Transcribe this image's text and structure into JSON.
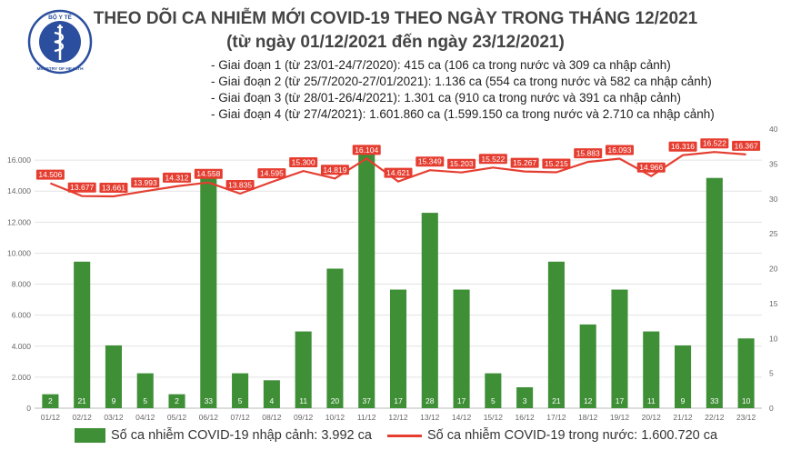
{
  "logo": {
    "top_text": "BỘ Y TẾ",
    "bottom_text": "MINISTRY OF HEALTH",
    "icon": "caduceus-emblem"
  },
  "header": {
    "title": "THEO DÕI CA NHIỄM MỚI COVID-19 THEO NGÀY TRONG THÁNG 12/2021",
    "subtitle": "(từ ngày 01/12/2021 đến ngày 23/12/2021)"
  },
  "phases": [
    "- Giai đoạn 1 (từ 23/01-24/7/2020): 415 ca (106 ca trong nước và 309 ca nhập cảnh)",
    "- Giai đoạn 2 (từ 25/7/2020-27/01/2021): 1.136 ca (554 ca trong nước và 582 ca nhập cảnh)",
    "- Giai đoạn 3 (từ 28/01-26/4/2021): 1.301 ca (910 ca trong nước và 391 ca nhập cảnh)",
    "- Giai đoạn 4 (từ 27/4/2021): 1.601.860 ca (1.599.150 ca trong nước và 2.710 ca nhập cảnh)"
  ],
  "colors": {
    "bar": "#3f8f37",
    "line": "#e53e31",
    "grid": "#e3e3e3",
    "axis_text": "#666666"
  },
  "chart_data": {
    "type": "bar+line",
    "categories": [
      "01/12",
      "02/12",
      "03/12",
      "04/12",
      "05/12",
      "06/12",
      "07/12",
      "08/12",
      "09/12",
      "10/12",
      "11/12",
      "12/12",
      "13/12",
      "14/12",
      "15/12",
      "16/12",
      "17/12",
      "18/12",
      "19/12",
      "20/12",
      "21/12",
      "22/12",
      "23/12"
    ],
    "left_axis": {
      "ticks": [
        "0",
        "2.000",
        "4.000",
        "6.000",
        "8.000",
        "10.000",
        "12.000",
        "14.000",
        "16.000"
      ],
      "ylim": [
        0,
        18000
      ]
    },
    "right_axis": {
      "ticks": [
        "0",
        "5",
        "10",
        "15",
        "20",
        "25",
        "30",
        "35",
        "40"
      ],
      "ylim": [
        0,
        40
      ]
    },
    "series": [
      {
        "name": "Số ca nhiễm COVID-19 nhập cảnh: 3.992 ca",
        "type": "bar",
        "axis": "right",
        "values": [
          2,
          21,
          9,
          5,
          2,
          33,
          5,
          4,
          11,
          20,
          37,
          17,
          28,
          17,
          5,
          3,
          21,
          12,
          17,
          11,
          9,
          33,
          10
        ],
        "labels": [
          "2",
          "21",
          "9",
          "5",
          "2",
          "33",
          "5",
          "4",
          "11",
          "20",
          "37",
          "17",
          "28",
          "17",
          "5",
          "3",
          "21",
          "12",
          "17",
          "11",
          "9",
          "33",
          "10"
        ]
      },
      {
        "name": "Số ca nhiễm COVID-19 trong nước: 1.600.720 ca",
        "type": "line",
        "axis": "left",
        "values": [
          14506,
          13677,
          13661,
          13993,
          14312,
          14558,
          13835,
          14595,
          15300,
          14819,
          16104,
          14621,
          15349,
          15203,
          15522,
          15267,
          15215,
          15883,
          16093,
          14966,
          16316,
          16522,
          16367
        ],
        "labels": [
          "14.506",
          "13.677",
          "13.661",
          "13.993",
          "14.312",
          "14.558",
          "13.835",
          "14.595",
          "15.300",
          "14.819",
          "16.104",
          "14.621",
          "15.349",
          "15.203",
          "15.522",
          "15.267",
          "15.215",
          "15.883",
          "16.093",
          "14.966",
          "16.316",
          "16.522",
          "16.367"
        ]
      }
    ],
    "grid": true,
    "legend_position": "bottom"
  }
}
